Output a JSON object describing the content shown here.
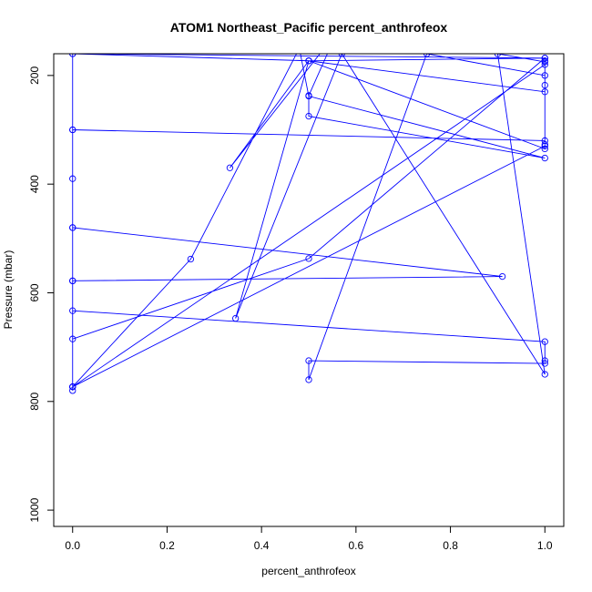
{
  "chart_data": {
    "type": "line",
    "title": "ATOM1 Northeast_Pacific percent_anthrofeox",
    "xlabel": "percent_anthrofeox",
    "ylabel": "Pressure (mbar)",
    "xlim": [
      -0.04,
      1.04
    ],
    "ylim": [
      1030,
      160
    ],
    "y_reversed": true,
    "x_ticks": [
      0.0,
      0.2,
      0.4,
      0.6,
      0.8,
      1.0
    ],
    "x_tick_labels": [
      "0.0",
      "0.2",
      "0.4",
      "0.6",
      "0.8",
      "1.0"
    ],
    "y_ticks": [
      200,
      400,
      600,
      800,
      1000
    ],
    "y_tick_labels": [
      "200",
      "400",
      "600",
      "800",
      "1000"
    ],
    "color": "#0000ff",
    "grid": false,
    "series": [
      {
        "x": [
          0,
          0,
          0,
          0,
          0,
          0,
          1,
          1,
          1,
          0.5,
          0.5,
          0.75,
          1,
          1,
          1,
          0,
          0,
          0,
          0.91,
          0,
          0,
          1,
          0,
          0,
          0.5,
          1,
          1,
          1,
          0.5,
          0.333,
          0.56,
          0.5,
          0.5,
          1,
          0.5,
          0.48,
          0.25,
          0,
          1,
          1,
          1,
          0.5,
          0,
          1,
          0.5,
          0.345,
          0.57,
          1,
          0.9,
          1
        ],
        "y": [
          160,
          300,
          390,
          480,
          578,
          633,
          690,
          725,
          730,
          725,
          760,
          160,
          200,
          218,
          320,
          300,
          780,
          480,
          570,
          578,
          773,
          180,
          773,
          685,
          537,
          168,
          327,
          335,
          173,
          370,
          120,
          237,
          275,
          352,
          238,
          150,
          538,
          773,
          330,
          173,
          230,
          173,
          160,
          168,
          173,
          647,
          160,
          750,
          160,
          175
        ]
      }
    ]
  }
}
